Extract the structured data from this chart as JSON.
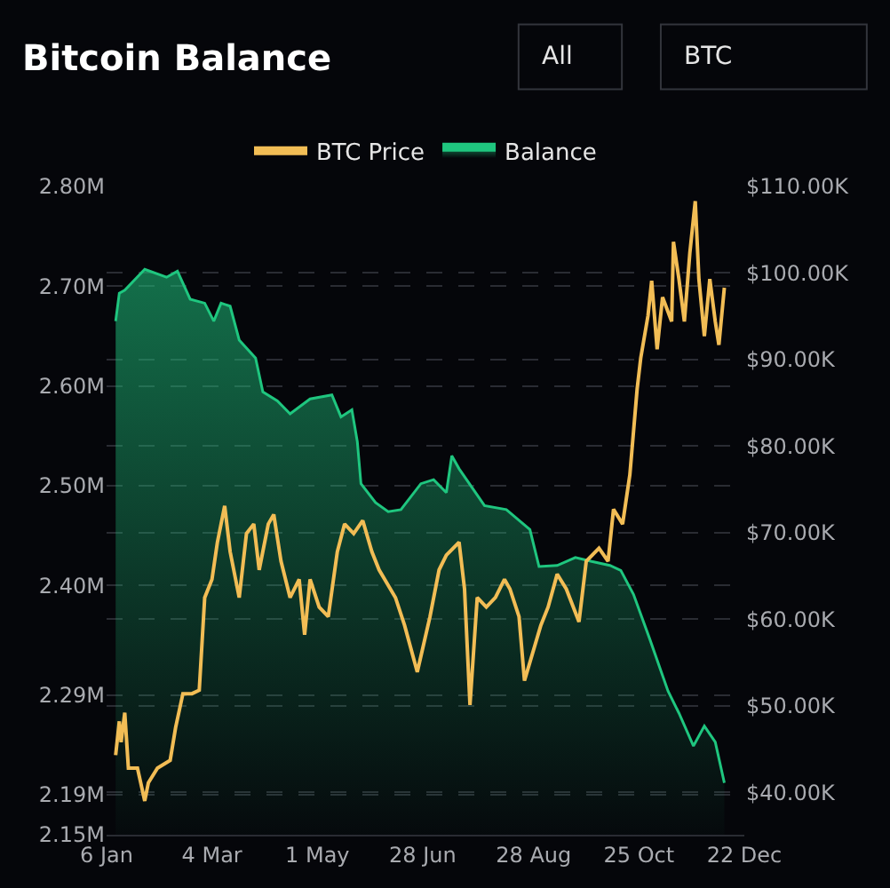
{
  "chart_data": {
    "type": "line",
    "title": "Bitcoin Balance",
    "annotations": [
      "All",
      "BTC"
    ],
    "xlim": [
      "--01-06",
      "--12-22"
    ],
    "xticks": [
      {
        "value": "--01-06",
        "label": "6 Jan"
      },
      {
        "value": "--03-04",
        "label": "4 Mar"
      },
      {
        "value": "--05-01",
        "label": "1 May"
      },
      {
        "value": "--06-28",
        "label": "28 Jun"
      },
      {
        "value": "--08-28",
        "label": "28 Aug"
      },
      {
        "value": "--10-25",
        "label": "25 Oct"
      },
      {
        "value": "--12-22",
        "label": "22 Dec"
      }
    ],
    "ylim": [
      2.15,
      2.8
    ],
    "yticks": [
      {
        "value": 2.8,
        "label": "2.80M"
      },
      {
        "value": 2.7,
        "label": "2.70M"
      },
      {
        "value": 2.6,
        "label": "2.60M"
      },
      {
        "value": 2.5,
        "label": "2.50M"
      },
      {
        "value": 2.4,
        "label": "2.40M"
      },
      {
        "value": 2.29,
        "label": "2.29M"
      },
      {
        "value": 2.19,
        "label": "2.19M"
      },
      {
        "value": 2.15,
        "label": "2.15M"
      }
    ],
    "y2lim": [
      35100,
      110000
    ],
    "y2ticks": [
      {
        "value": 110000,
        "label": "$110.00K"
      },
      {
        "value": 100000,
        "label": "$100.00K"
      },
      {
        "value": 90000,
        "label": "$90.00K"
      },
      {
        "value": 80000,
        "label": "$80.00K"
      },
      {
        "value": 70000,
        "label": "$70.00K"
      },
      {
        "value": 60000,
        "label": "$60.00K"
      },
      {
        "value": 50000,
        "label": "$50.00K"
      },
      {
        "value": 40000,
        "label": "$40.00K"
      }
    ],
    "grid": "y",
    "legend": "top",
    "series": [
      {
        "name": "BTC Price",
        "axis": "y2",
        "color": "#f2bd55",
        "x": [
          "--01-11",
          "--01-13",
          "--01-14",
          "--01-16",
          "--01-18",
          "--01-23",
          "--01-27",
          "--01-29",
          "--02-03",
          "--02-10",
          "--02-13",
          "--02-17",
          "--02-22",
          "--02-26",
          "--02-29",
          "--03-04",
          "--03-07",
          "--03-11",
          "--03-14",
          "--03-19",
          "--03-23",
          "--03-27",
          "--03-30",
          "--04-04",
          "--04-07",
          "--04-11",
          "--04-16",
          "--04-21",
          "--04-24",
          "--04-27",
          "--05-02",
          "--05-07",
          "--05-12",
          "--05-16",
          "--05-21",
          "--05-26",
          "--05-31",
          "--06-04",
          "--06-13",
          "--06-18",
          "--06-25",
          "--07-02",
          "--07-07",
          "--07-11",
          "--07-18",
          "--07-21",
          "--07-24",
          "--07-28",
          "--08-02",
          "--08-07",
          "--08-12",
          "--08-15",
          "--08-20",
          "--08-23",
          "--09-01",
          "--09-05",
          "--09-10",
          "--09-15",
          "--09-22",
          "--09-26",
          "--10-03",
          "--10-08",
          "--10-11",
          "--10-16",
          "--10-20",
          "--10-24",
          "--10-26",
          "--10-30",
          "--11-01",
          "--11-04",
          "--11-07",
          "--11-12",
          "--11-13",
          "--11-16",
          "--11-19",
          "--11-22",
          "--11-25",
          "--11-27",
          "--11-30",
          "--12-03",
          "--12-06",
          "--12-08",
          "--12-11"
        ],
        "values": [
          44300,
          48200,
          45800,
          49200,
          42800,
          42800,
          39000,
          41100,
          42800,
          43700,
          47500,
          51400,
          51400,
          51800,
          62500,
          64600,
          68900,
          73100,
          67800,
          62500,
          69900,
          71000,
          65700,
          71000,
          72100,
          66700,
          62500,
          64600,
          58200,
          64600,
          61400,
          60300,
          67800,
          71000,
          69900,
          71400,
          67800,
          65700,
          62500,
          59300,
          53900,
          60300,
          65700,
          67400,
          68900,
          63500,
          50100,
          62500,
          61400,
          62500,
          64600,
          63500,
          60300,
          52900,
          59300,
          61400,
          65200,
          63500,
          59700,
          66700,
          68200,
          66700,
          72700,
          71000,
          76700,
          86600,
          90200,
          95100,
          99100,
          91200,
          97200,
          94400,
          103600,
          99300,
          94400,
          102300,
          108300,
          99300,
          92700,
          99300,
          94400,
          91700,
          98300
        ]
      },
      {
        "name": "Balance",
        "type": "area",
        "axis": "y",
        "color": "#1fc67f",
        "x": [
          "--01-11",
          "--01-13",
          "--01-16",
          "--01-27",
          "--02-08",
          "--02-14",
          "--02-21",
          "--02-29",
          "--03-05",
          "--03-09",
          "--03-14",
          "--03-19",
          "--03-28",
          "--04-01",
          "--04-09",
          "--04-16",
          "--04-27",
          "--05-09",
          "--05-14",
          "--05-20",
          "--05-23",
          "--05-25",
          "--06-02",
          "--06-09",
          "--06-16",
          "--06-27",
          "--07-04",
          "--07-11",
          "--07-14",
          "--07-18",
          "--08-01",
          "--08-13",
          "--08-26",
          "--08-31",
          "--09-10",
          "--09-20",
          "--09-29",
          "--10-09",
          "--10-15",
          "--10-22",
          "--10-31",
          "--11-10",
          "--11-16",
          "--11-24",
          "--11-30",
          "--12-06",
          "--12-11"
        ],
        "values": [
          2.665,
          2.693,
          2.696,
          2.717,
          2.709,
          2.715,
          2.687,
          2.683,
          2.665,
          2.683,
          2.68,
          2.646,
          2.628,
          2.594,
          2.585,
          2.572,
          2.587,
          2.591,
          2.569,
          2.576,
          2.544,
          2.502,
          2.483,
          2.474,
          2.476,
          2.502,
          2.506,
          2.493,
          2.53,
          2.517,
          2.48,
          2.476,
          2.456,
          2.419,
          2.42,
          2.428,
          2.424,
          2.42,
          2.415,
          2.391,
          2.346,
          2.294,
          2.272,
          2.239,
          2.259,
          2.243,
          2.202
        ]
      }
    ]
  }
}
